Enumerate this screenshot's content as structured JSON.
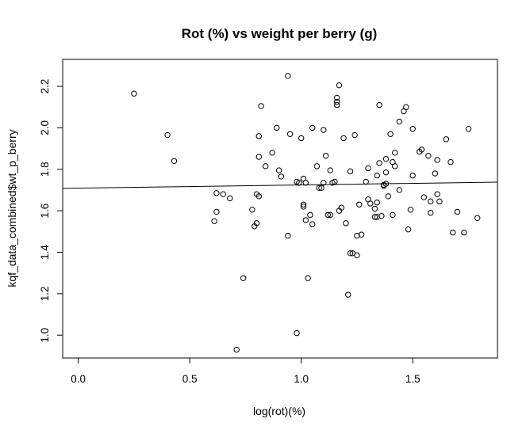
{
  "chart_data": {
    "type": "scatter",
    "title": "Rot (%) vs weight per berry (g)",
    "xlabel": "log(rot)(%)",
    "ylabel": "kqf_data_combined$wt_p_berry",
    "xlim": [
      -0.07,
      1.88
    ],
    "ylim": [
      0.89,
      2.33
    ],
    "x_ticks": [
      0.0,
      0.5,
      1.0,
      1.5
    ],
    "x_tick_labels": [
      "0.0",
      "0.5",
      "1.0",
      "1.5"
    ],
    "y_ticks": [
      1.0,
      1.2,
      1.4,
      1.6,
      1.8,
      2.0,
      2.2
    ],
    "y_tick_labels": [
      "1.0",
      "1.2",
      "1.4",
      "1.6",
      "1.8",
      "2.0",
      "2.2"
    ],
    "grid": false,
    "legend": "none",
    "fit_line": {
      "x": [
        -0.07,
        1.88
      ],
      "y": [
        1.708,
        1.738
      ]
    },
    "points": [
      [
        0.25,
        2.165
      ],
      [
        0.4,
        1.965
      ],
      [
        0.43,
        1.84
      ],
      [
        0.61,
        1.55
      ],
      [
        0.62,
        1.685
      ],
      [
        0.62,
        1.595
      ],
      [
        0.65,
        1.68
      ],
      [
        0.68,
        1.66
      ],
      [
        0.71,
        0.93
      ],
      [
        0.74,
        1.275
      ],
      [
        0.78,
        1.605
      ],
      [
        0.79,
        1.525
      ],
      [
        0.8,
        1.54
      ],
      [
        0.8,
        1.68
      ],
      [
        0.81,
        1.67
      ],
      [
        0.81,
        1.96
      ],
      [
        0.81,
        1.86
      ],
      [
        0.82,
        2.105
      ],
      [
        0.84,
        1.815
      ],
      [
        0.87,
        1.88
      ],
      [
        0.89,
        2.0
      ],
      [
        0.9,
        1.795
      ],
      [
        0.91,
        1.765
      ],
      [
        0.94,
        1.48
      ],
      [
        0.94,
        2.25
      ],
      [
        0.95,
        1.97
      ],
      [
        0.98,
        1.74
      ],
      [
        0.98,
        1.01
      ],
      [
        0.99,
        1.735
      ],
      [
        1.0,
        1.95
      ],
      [
        1.01,
        1.755
      ],
      [
        1.01,
        1.62
      ],
      [
        1.01,
        1.63
      ],
      [
        1.02,
        1.555
      ],
      [
        1.02,
        1.735
      ],
      [
        1.03,
        1.275
      ],
      [
        1.04,
        1.58
      ],
      [
        1.05,
        2.0
      ],
      [
        1.05,
        1.535
      ],
      [
        1.07,
        1.815
      ],
      [
        1.08,
        1.71
      ],
      [
        1.09,
        1.71
      ],
      [
        1.1,
        1.99
      ],
      [
        1.1,
        1.735
      ],
      [
        1.11,
        1.865
      ],
      [
        1.12,
        1.58
      ],
      [
        1.13,
        1.795
      ],
      [
        1.13,
        1.58
      ],
      [
        1.14,
        1.735
      ],
      [
        1.15,
        1.74
      ],
      [
        1.16,
        2.11
      ],
      [
        1.16,
        2.125
      ],
      [
        1.16,
        2.145
      ],
      [
        1.17,
        2.205
      ],
      [
        1.17,
        1.6
      ],
      [
        1.18,
        1.615
      ],
      [
        1.19,
        1.95
      ],
      [
        1.2,
        1.54
      ],
      [
        1.21,
        1.195
      ],
      [
        1.22,
        1.79
      ],
      [
        1.22,
        1.395
      ],
      [
        1.23,
        1.395
      ],
      [
        1.24,
        1.965
      ],
      [
        1.25,
        1.385
      ],
      [
        1.25,
        1.48
      ],
      [
        1.26,
        1.63
      ],
      [
        1.27,
        1.485
      ],
      [
        1.29,
        1.74
      ],
      [
        1.3,
        1.655
      ],
      [
        1.3,
        1.805
      ],
      [
        1.31,
        1.635
      ],
      [
        1.33,
        1.57
      ],
      [
        1.33,
        1.61
      ],
      [
        1.34,
        1.57
      ],
      [
        1.34,
        1.64
      ],
      [
        1.34,
        1.77
      ],
      [
        1.35,
        2.11
      ],
      [
        1.35,
        1.83
      ],
      [
        1.36,
        1.575
      ],
      [
        1.37,
        1.725
      ],
      [
        1.37,
        1.72
      ],
      [
        1.38,
        1.85
      ],
      [
        1.38,
        1.785
      ],
      [
        1.38,
        1.73
      ],
      [
        1.39,
        1.67
      ],
      [
        1.4,
        1.97
      ],
      [
        1.41,
        1.835
      ],
      [
        1.41,
        1.58
      ],
      [
        1.42,
        1.815
      ],
      [
        1.42,
        1.88
      ],
      [
        1.44,
        1.7
      ],
      [
        1.44,
        2.03
      ],
      [
        1.46,
        2.08
      ],
      [
        1.47,
        2.1
      ],
      [
        1.48,
        1.51
      ],
      [
        1.49,
        1.605
      ],
      [
        1.5,
        1.995
      ],
      [
        1.5,
        1.77
      ],
      [
        1.53,
        1.885
      ],
      [
        1.54,
        1.895
      ],
      [
        1.55,
        1.665
      ],
      [
        1.57,
        1.865
      ],
      [
        1.58,
        1.645
      ],
      [
        1.58,
        1.59
      ],
      [
        1.6,
        1.78
      ],
      [
        1.61,
        1.845
      ],
      [
        1.61,
        1.68
      ],
      [
        1.62,
        1.645
      ],
      [
        1.65,
        1.945
      ],
      [
        1.67,
        1.835
      ],
      [
        1.68,
        1.495
      ],
      [
        1.7,
        1.595
      ],
      [
        1.73,
        1.495
      ],
      [
        1.75,
        1.995
      ],
      [
        1.79,
        1.565
      ]
    ]
  }
}
